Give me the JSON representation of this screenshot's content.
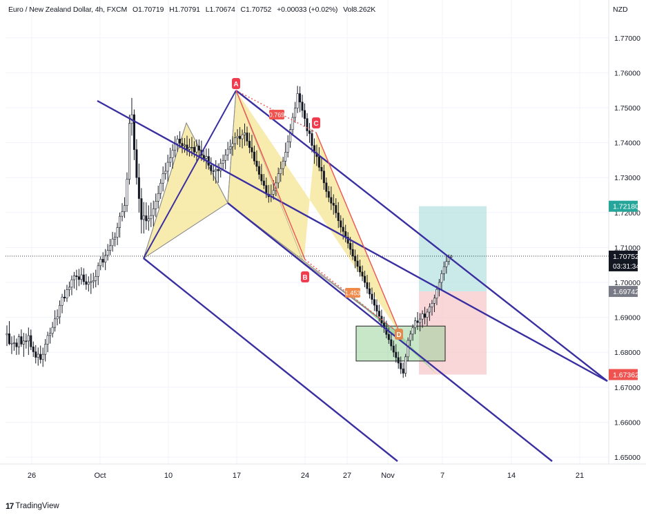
{
  "header": {
    "symbol": "Euro / New Zealand Dollar, 4h, FXCM",
    "open": "O1.70719",
    "high": "H1.70791",
    "low": "L1.70674",
    "close": "C1.70752",
    "change": "+0.00033 (+0.02%)",
    "volume": "Vol8.262K"
  },
  "currency": "NZD",
  "footer": {
    "brand": "TradingView",
    "logo": "17"
  },
  "colors": {
    "up": "#26a69a",
    "down": "#ef5350",
    "channel": "#3a2fa0",
    "pattern_fill": "#f7e7a0",
    "pattern_green": "#9bd39a",
    "harmonic_line": "#ef5350",
    "target_box": "#a6dcda",
    "stop_box": "#f6c5c6"
  },
  "chart_data": {
    "type": "candlestick",
    "y_axis": {
      "ylim": [
        1.645,
        1.785
      ],
      "ticks": [
        "1.77000",
        "1.76000",
        "1.75000",
        "1.74000",
        "1.73000",
        "1.72000",
        "1.71000",
        "1.70000",
        "1.69000",
        "1.68000",
        "1.67000",
        "1.66000",
        "1.65000"
      ]
    },
    "x_axis": {
      "tick_labels": [
        "26",
        "Oct",
        "10",
        "17",
        "24",
        "27",
        "Nov",
        "7",
        "14",
        "21"
      ]
    },
    "price_labels": [
      {
        "value": "1.72180",
        "color": "#26a69a"
      },
      {
        "value": "1.70752",
        "sub": "03:31:34",
        "color": "#131722"
      },
      {
        "value": "1.69742",
        "color": "#787b86"
      },
      {
        "value": "1.67362",
        "color": "#ef5350"
      }
    ],
    "current_price": 1.70752,
    "harmonic_points": [
      {
        "label": "A",
        "price": 1.7555
      },
      {
        "label": "B",
        "price": 1.7055
      },
      {
        "label": "C",
        "price": 1.7435
      },
      {
        "label": "D",
        "price": 1.6855
      }
    ],
    "ratios": [
      "0.769",
      "1.453"
    ],
    "trade_box": {
      "entry": 1.69742,
      "target": 1.7218,
      "stop": 1.67362
    },
    "base_box": {
      "top": 1.6875,
      "bottom": 1.6775
    },
    "candles": [
      [
        1.685,
        1.68769,
        1.6818,
        1.68531
      ],
      [
        1.68531,
        1.68893,
        1.682,
        1.68245
      ],
      [
        1.68245,
        1.68456,
        1.67949,
        1.68256
      ],
      [
        1.68256,
        1.68484,
        1.68042,
        1.6827
      ],
      [
        1.6827,
        1.68394,
        1.67925,
        1.68156
      ],
      [
        1.68156,
        1.68524,
        1.67933,
        1.68449
      ],
      [
        1.68449,
        1.68653,
        1.68155,
        1.68233
      ],
      [
        1.68233,
        1.68556,
        1.67869,
        1.68324
      ],
      [
        1.68324,
        1.68537,
        1.68107,
        1.68323
      ],
      [
        1.68323,
        1.68708,
        1.67923,
        1.68478
      ],
      [
        1.68478,
        1.68651,
        1.68064,
        1.68157
      ],
      [
        1.68157,
        1.68308,
        1.67866,
        1.68014
      ],
      [
        1.68014,
        1.68204,
        1.67681,
        1.67855
      ],
      [
        1.67855,
        1.68137,
        1.67617,
        1.67945
      ],
      [
        1.67945,
        1.68192,
        1.6768,
        1.67794
      ],
      [
        1.67794,
        1.68134,
        1.67582,
        1.67942
      ],
      [
        1.67942,
        1.68378,
        1.67737,
        1.68231
      ],
      [
        1.68231,
        1.68589,
        1.68004,
        1.6848
      ],
      [
        1.6848,
        1.68704,
        1.68248,
        1.68541
      ],
      [
        1.68541,
        1.68869,
        1.68425,
        1.68713
      ],
      [
        1.68713,
        1.69204,
        1.68592,
        1.68956
      ],
      [
        1.68956,
        1.69228,
        1.68771,
        1.69013
      ],
      [
        1.69013,
        1.69485,
        1.68812,
        1.69343
      ],
      [
        1.69343,
        1.6967,
        1.69116,
        1.6958
      ],
      [
        1.6958,
        1.69794,
        1.69445,
        1.69553
      ],
      [
        1.69553,
        1.69932,
        1.69441,
        1.6979
      ],
      [
        1.6979,
        1.70024,
        1.69596,
        1.69863
      ],
      [
        1.69863,
        1.70196,
        1.69633,
        1.70077
      ],
      [
        1.70077,
        1.703,
        1.69824,
        1.70189
      ],
      [
        1.70189,
        1.70363,
        1.69776,
        1.70164
      ],
      [
        1.70164,
        1.70387,
        1.69893,
        1.70084
      ],
      [
        1.70084,
        1.70434,
        1.69937,
        1.70217
      ],
      [
        1.70217,
        1.70405,
        1.69923,
        1.70022
      ],
      [
        1.70022,
        1.70243,
        1.69788,
        1.69943
      ],
      [
        1.69943,
        1.70174,
        1.69739,
        1.70004
      ],
      [
        1.70004,
        1.70254,
        1.6967,
        1.70019
      ],
      [
        1.70019,
        1.70279,
        1.69831,
        1.70054
      ],
      [
        1.70054,
        1.70364,
        1.69858,
        1.70172
      ],
      [
        1.70172,
        1.7057,
        1.69923,
        1.70478
      ],
      [
        1.70478,
        1.70742,
        1.70349,
        1.70664
      ],
      [
        1.70664,
        1.70864,
        1.70432,
        1.70577
      ],
      [
        1.70577,
        1.70955,
        1.70351,
        1.70777
      ],
      [
        1.70777,
        1.711,
        1.70625,
        1.70916
      ],
      [
        1.70916,
        1.71245,
        1.70777,
        1.71051
      ],
      [
        1.71051,
        1.71446,
        1.70881,
        1.71241
      ],
      [
        1.71241,
        1.71431,
        1.71029,
        1.71294
      ],
      [
        1.71294,
        1.71709,
        1.71066,
        1.7157
      ],
      [
        1.7157,
        1.72,
        1.71283,
        1.71894
      ],
      [
        1.71894,
        1.72269,
        1.71747,
        1.72023
      ],
      [
        1.72023,
        1.72439,
        1.71845,
        1.72203
      ],
      [
        1.72203,
        1.7315,
        1.72016,
        1.7295
      ],
      [
        1.7295,
        1.748,
        1.728,
        1.7455
      ],
      [
        1.7455,
        1.7528,
        1.742,
        1.748
      ],
      [
        1.748,
        1.7495,
        1.735,
        1.738
      ],
      [
        1.738,
        1.741,
        1.728,
        1.73
      ],
      [
        1.73,
        1.734,
        1.72,
        1.724
      ],
      [
        1.724,
        1.727,
        1.714,
        1.718
      ],
      [
        1.718,
        1.723,
        1.714,
        1.71908
      ],
      [
        1.71908,
        1.7229,
        1.71507,
        1.7176
      ],
      [
        1.7176,
        1.72205,
        1.71479,
        1.71822
      ],
      [
        1.71822,
        1.72284,
        1.71584,
        1.71915
      ],
      [
        1.71915,
        1.72339,
        1.71604,
        1.72108
      ],
      [
        1.72108,
        1.72545,
        1.7187,
        1.72324
      ],
      [
        1.72324,
        1.72768,
        1.72118,
        1.72544
      ],
      [
        1.72544,
        1.7296,
        1.72389,
        1.72841
      ],
      [
        1.72841,
        1.73319,
        1.72604,
        1.73113
      ],
      [
        1.73113,
        1.73425,
        1.7294,
        1.73183
      ],
      [
        1.73183,
        1.73654,
        1.72884,
        1.73438
      ],
      [
        1.73438,
        1.73853,
        1.73302,
        1.73567
      ],
      [
        1.73567,
        1.73958,
        1.73257,
        1.73782
      ],
      [
        1.73782,
        1.74185,
        1.73585,
        1.73968
      ],
      [
        1.73968,
        1.74213,
        1.73737,
        1.74104
      ],
      [
        1.74104,
        1.74326,
        1.73843,
        1.73982
      ],
      [
        1.73982,
        1.74137,
        1.73701,
        1.73904
      ],
      [
        1.73904,
        1.74132,
        1.73713,
        1.73935
      ],
      [
        1.73935,
        1.74199,
        1.73635,
        1.73808
      ],
      [
        1.73808,
        1.74117,
        1.73603,
        1.73868
      ],
      [
        1.73868,
        1.74166,
        1.73612,
        1.73867
      ],
      [
        1.73867,
        1.74042,
        1.73571,
        1.73731
      ],
      [
        1.73731,
        1.74093,
        1.73436,
        1.73906
      ],
      [
        1.73906,
        1.74093,
        1.73612,
        1.73782
      ],
      [
        1.73782,
        1.74059,
        1.73477,
        1.7364
      ],
      [
        1.7364,
        1.73787,
        1.73441,
        1.73551
      ],
      [
        1.73551,
        1.73832,
        1.73247,
        1.73605
      ],
      [
        1.73605,
        1.73833,
        1.73225,
        1.73352
      ],
      [
        1.73352,
        1.73578,
        1.73076,
        1.73194
      ],
      [
        1.73194,
        1.73384,
        1.72909,
        1.73192
      ],
      [
        1.73192,
        1.73499,
        1.7283,
        1.73233
      ],
      [
        1.73233,
        1.73408,
        1.72848,
        1.73195
      ],
      [
        1.73195,
        1.73543,
        1.73004,
        1.73409
      ],
      [
        1.73409,
        1.7366,
        1.73221,
        1.73493
      ],
      [
        1.73493,
        1.73812,
        1.73236,
        1.73649
      ],
      [
        1.73649,
        1.74022,
        1.73483,
        1.73813
      ],
      [
        1.73813,
        1.74091,
        1.73681,
        1.73887
      ],
      [
        1.73887,
        1.74185,
        1.73625,
        1.73972
      ],
      [
        1.73972,
        1.74294,
        1.73801,
        1.74141
      ],
      [
        1.74141,
        1.74387,
        1.73936,
        1.74185
      ],
      [
        1.74185,
        1.74446,
        1.73871,
        1.7411
      ],
      [
        1.7411,
        1.74377,
        1.73838,
        1.74226
      ],
      [
        1.74226,
        1.74547,
        1.73909,
        1.74281
      ],
      [
        1.74281,
        1.74458,
        1.73913,
        1.74043
      ],
      [
        1.74043,
        1.74284,
        1.73696,
        1.73861
      ],
      [
        1.73861,
        1.74224,
        1.73546,
        1.73733
      ],
      [
        1.73733,
        1.73915,
        1.7337,
        1.73475
      ],
      [
        1.73475,
        1.73779,
        1.7318,
        1.7332
      ],
      [
        1.7332,
        1.73474,
        1.72952,
        1.73092
      ],
      [
        1.73092,
        1.73391,
        1.72788,
        1.72905
      ],
      [
        1.72905,
        1.73104,
        1.7267,
        1.72775
      ],
      [
        1.72775,
        1.73,
        1.72418,
        1.72526
      ],
      [
        1.72526,
        1.7279,
        1.72282,
        1.72452
      ],
      [
        1.72452,
        1.72803,
        1.72299,
        1.72522
      ],
      [
        1.72522,
        1.72926,
        1.7237,
        1.72632
      ],
      [
        1.72632,
        1.73035,
        1.72469,
        1.72848
      ],
      [
        1.72848,
        1.73285,
        1.72693,
        1.73111
      ],
      [
        1.73111,
        1.73457,
        1.72878,
        1.73258
      ],
      [
        1.73258,
        1.73596,
        1.73061,
        1.73471
      ],
      [
        1.73471,
        1.74001,
        1.73326,
        1.73726
      ],
      [
        1.73726,
        1.74213,
        1.73577,
        1.74022
      ],
      [
        1.74022,
        1.74535,
        1.73851,
        1.74375
      ],
      [
        1.74375,
        1.74851,
        1.74197,
        1.74722
      ],
      [
        1.74722,
        1.75167,
        1.74568,
        1.74988
      ],
      [
        1.74988,
        1.75625,
        1.74847,
        1.75405
      ],
      [
        1.75405,
        1.75609,
        1.74871,
        1.75161
      ],
      [
        1.75161,
        1.75372,
        1.74719,
        1.74922
      ],
      [
        1.74922,
        1.75125,
        1.74465,
        1.7469
      ],
      [
        1.7469,
        1.74848,
        1.74186,
        1.74337
      ],
      [
        1.74337,
        1.74563,
        1.73997,
        1.74261
      ],
      [
        1.74261,
        1.74374,
        1.73721,
        1.73918
      ],
      [
        1.73918,
        1.74121,
        1.73393,
        1.7371
      ],
      [
        1.7371,
        1.73942,
        1.73333,
        1.736
      ],
      [
        1.736,
        1.7387,
        1.73183,
        1.73295
      ],
      [
        1.73295,
        1.7357,
        1.72945,
        1.73187
      ],
      [
        1.73187,
        1.73365,
        1.72652,
        1.72849
      ],
      [
        1.72849,
        1.73003,
        1.72425,
        1.72602
      ],
      [
        1.72602,
        1.7276,
        1.72298,
        1.72432
      ],
      [
        1.72432,
        1.72745,
        1.7207,
        1.72268
      ],
      [
        1.72268,
        1.72521,
        1.71938,
        1.72206
      ],
      [
        1.72206,
        1.72409,
        1.71845,
        1.7199
      ],
      [
        1.7199,
        1.72297,
        1.71559,
        1.71765
      ],
      [
        1.71765,
        1.71923,
        1.71422,
        1.71582
      ],
      [
        1.71582,
        1.71844,
        1.71229,
        1.71458
      ],
      [
        1.71458,
        1.71649,
        1.71146,
        1.71297
      ],
      [
        1.71297,
        1.71439,
        1.70975,
        1.71119
      ],
      [
        1.71119,
        1.71302,
        1.70787,
        1.70945
      ],
      [
        1.70945,
        1.71145,
        1.70641,
        1.70752
      ],
      [
        1.70752,
        1.7094,
        1.70406,
        1.70613
      ],
      [
        1.70613,
        1.70797,
        1.70298,
        1.70456
      ],
      [
        1.70456,
        1.7065,
        1.70166,
        1.70299
      ],
      [
        1.70299,
        1.70485,
        1.70035,
        1.70178
      ],
      [
        1.70178,
        1.70335,
        1.69862,
        1.69997
      ],
      [
        1.69997,
        1.70214,
        1.69679,
        1.69821
      ],
      [
        1.69821,
        1.70003,
        1.69539,
        1.69666
      ],
      [
        1.69666,
        1.69852,
        1.69378,
        1.69511
      ],
      [
        1.69511,
        1.69716,
        1.69183,
        1.69347
      ],
      [
        1.69347,
        1.69515,
        1.69021,
        1.69178
      ],
      [
        1.69178,
        1.69361,
        1.68877,
        1.69033
      ],
      [
        1.69033,
        1.69219,
        1.6871,
        1.68836
      ],
      [
        1.68836,
        1.69017,
        1.68558,
        1.687
      ],
      [
        1.687,
        1.68903,
        1.68399,
        1.68512
      ],
      [
        1.68512,
        1.68717,
        1.68241,
        1.68361
      ],
      [
        1.68361,
        1.68546,
        1.68052,
        1.6818
      ],
      [
        1.6818,
        1.68337,
        1.67865,
        1.68003
      ],
      [
        1.68003,
        1.68232,
        1.67703,
        1.67849
      ],
      [
        1.67849,
        1.68017,
        1.6753,
        1.6769
      ],
      [
        1.6769,
        1.67877,
        1.6738,
        1.67526
      ],
      [
        1.67526,
        1.67708,
        1.67268,
        1.674
      ],
      [
        1.674,
        1.67955,
        1.673,
        1.6787
      ],
      [
        1.6787,
        1.68425,
        1.6774,
        1.6834
      ],
      [
        1.6834,
        1.6862,
        1.6818,
        1.6852
      ],
      [
        1.6852,
        1.688,
        1.6833,
        1.687
      ],
      [
        1.687,
        1.69,
        1.6852,
        1.689
      ],
      [
        1.689,
        1.6915,
        1.6864,
        1.6885
      ],
      [
        1.6885,
        1.6912,
        1.686,
        1.6895
      ],
      [
        1.6895,
        1.692,
        1.687,
        1.691
      ],
      [
        1.691,
        1.693,
        1.688,
        1.69
      ],
      [
        1.69,
        1.6925,
        1.6875,
        1.6915
      ],
      [
        1.6915,
        1.694,
        1.689,
        1.693
      ],
      [
        1.693,
        1.695,
        1.6905,
        1.694
      ],
      [
        1.694,
        1.6965,
        1.6915,
        1.6955
      ],
      [
        1.6955,
        1.699,
        1.6935,
        1.698
      ],
      [
        1.698,
        1.701,
        1.696,
        1.7
      ],
      [
        1.7,
        1.7035,
        1.698,
        1.7025
      ],
      [
        1.7025,
        1.706,
        1.7005,
        1.7045
      ],
      [
        1.7045,
        1.7075,
        1.7025,
        1.706
      ],
      [
        1.706,
        1.708,
        1.705,
        1.70719
      ],
      [
        1.70719,
        1.70791,
        1.70674,
        1.70752
      ]
    ]
  }
}
